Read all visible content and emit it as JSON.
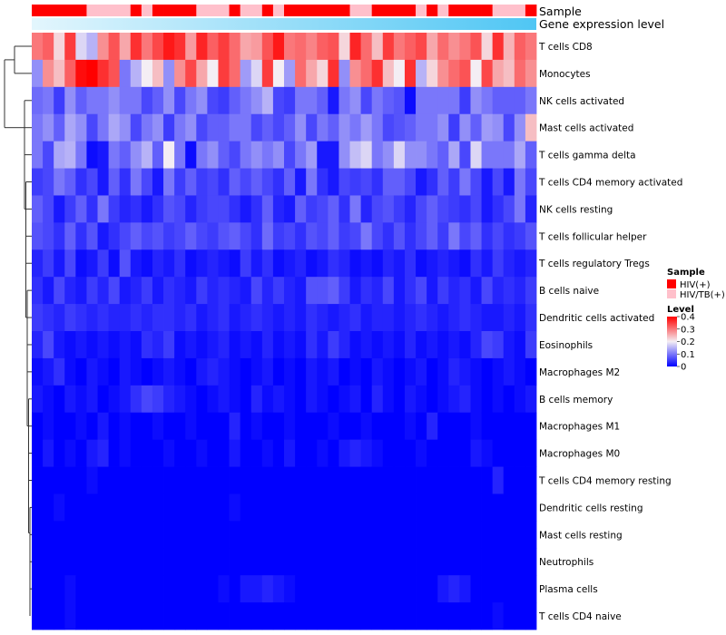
{
  "chart_data": {
    "type": "heatmap",
    "colors": {
      "low": "#0000ff",
      "mid": "#f4eef4",
      "high": "#ff0000",
      "hiv": "#ff0000",
      "hivtb": "#ffc0cb",
      "gene_bar_start": "#e3f6fd",
      "gene_bar_end": "#4fc6f4",
      "dendro": "#333333"
    },
    "annotation_labels": {
      "sample": "Sample",
      "gene": "Gene expression level"
    },
    "row_labels": [
      "T cells CD8",
      "Monocytes",
      "NK cells activated",
      "Mast cells activated",
      "T cells gamma delta",
      "T cells CD4 memory activated",
      "NK cells resting",
      "T cells follicular helper",
      "T cells regulatory  Tregs",
      "B cells naive",
      "Dendritic cells activated",
      "Eosinophils",
      "Macrophages M2",
      "B cells memory",
      "Macrophages M1",
      "Macrophages M0",
      "T cells CD4 memory resting",
      "Dendritic cells resting",
      "Mast cells resting",
      "Neutrophils",
      "Plasma cells",
      "T cells CD4 naive"
    ],
    "sample_groups": [
      "HIV(+)",
      "HIV(+)",
      "HIV(+)",
      "HIV(+)",
      "HIV(+)",
      "HIV/TB(+)",
      "HIV/TB(+)",
      "HIV/TB(+)",
      "HIV/TB(+)",
      "HIV(+)",
      "HIV/TB(+)",
      "HIV(+)",
      "HIV(+)",
      "HIV(+)",
      "HIV(+)",
      "HIV/TB(+)",
      "HIV/TB(+)",
      "HIV/TB(+)",
      "HIV(+)",
      "HIV/TB(+)",
      "HIV/TB(+)",
      "HIV(+)",
      "HIV/TB(+)",
      "HIV(+)",
      "HIV(+)",
      "HIV(+)",
      "HIV(+)",
      "HIV(+)",
      "HIV(+)",
      "HIV/TB(+)",
      "HIV/TB(+)",
      "HIV(+)",
      "HIV(+)",
      "HIV(+)",
      "HIV(+)",
      "HIV/TB(+)",
      "HIV(+)",
      "HIV/TB(+)",
      "HIV(+)",
      "HIV(+)",
      "HIV(+)",
      "HIV(+)",
      "HIV/TB(+)",
      "HIV/TB(+)",
      "HIV/TB(+)",
      "HIV(+)"
    ],
    "values": [
      [
        0.3,
        0.32,
        0.22,
        0.35,
        0.18,
        0.15,
        0.28,
        0.33,
        0.26,
        0.36,
        0.3,
        0.34,
        0.38,
        0.36,
        0.27,
        0.37,
        0.32,
        0.35,
        0.31,
        0.26,
        0.27,
        0.33,
        0.38,
        0.3,
        0.31,
        0.29,
        0.32,
        0.33,
        0.22,
        0.37,
        0.31,
        0.24,
        0.35,
        0.3,
        0.32,
        0.34,
        0.26,
        0.31,
        0.28,
        0.3,
        0.33,
        0.22,
        0.36,
        0.25,
        0.32,
        0.3
      ],
      [
        0.12,
        0.28,
        0.24,
        0.32,
        0.39,
        0.4,
        0.36,
        0.33,
        0.1,
        0.15,
        0.2,
        0.24,
        0.12,
        0.28,
        0.34,
        0.26,
        0.2,
        0.35,
        0.31,
        0.13,
        0.18,
        0.35,
        0.2,
        0.13,
        0.31,
        0.26,
        0.22,
        0.36,
        0.12,
        0.28,
        0.31,
        0.36,
        0.24,
        0.2,
        0.36,
        0.15,
        0.22,
        0.28,
        0.31,
        0.33,
        0.2,
        0.34,
        0.26,
        0.24,
        0.31,
        0.28
      ],
      [
        0.09,
        0.1,
        0.05,
        0.12,
        0.08,
        0.1,
        0.1,
        0.12,
        0.1,
        0.1,
        0.06,
        0.08,
        0.12,
        0.06,
        0.1,
        0.12,
        0.06,
        0.05,
        0.08,
        0.1,
        0.12,
        0.15,
        0.06,
        0.05,
        0.1,
        0.1,
        0.08,
        0.02,
        0.1,
        0.12,
        0.06,
        0.1,
        0.08,
        0.07,
        0.01,
        0.1,
        0.1,
        0.1,
        0.1,
        0.05,
        0.12,
        0.1,
        0.08,
        0.08,
        0.08,
        0.1
      ],
      [
        0.1,
        0.12,
        0.08,
        0.14,
        0.12,
        0.06,
        0.1,
        0.14,
        0.12,
        0.06,
        0.1,
        0.12,
        0.05,
        0.1,
        0.12,
        0.06,
        0.08,
        0.08,
        0.1,
        0.1,
        0.06,
        0.08,
        0.06,
        0.08,
        0.12,
        0.06,
        0.1,
        0.08,
        0.12,
        0.1,
        0.13,
        0.1,
        0.06,
        0.07,
        0.08,
        0.1,
        0.1,
        0.12,
        0.05,
        0.12,
        0.08,
        0.13,
        0.12,
        0.06,
        0.12,
        0.24
      ],
      [
        0.1,
        0.06,
        0.14,
        0.15,
        0.1,
        0.01,
        0.02,
        0.1,
        0.08,
        0.12,
        0.15,
        0.08,
        0.2,
        0.1,
        0.01,
        0.1,
        0.12,
        0.08,
        0.06,
        0.1,
        0.12,
        0.1,
        0.12,
        0.06,
        0.1,
        0.13,
        0.02,
        0.02,
        0.12,
        0.16,
        0.18,
        0.1,
        0.12,
        0.18,
        0.12,
        0.12,
        0.1,
        0.08,
        0.14,
        0.06,
        0.18,
        0.1,
        0.1,
        0.1,
        0.14,
        0.08
      ],
      [
        0.05,
        0.06,
        0.1,
        0.08,
        0.04,
        0.06,
        0.02,
        0.08,
        0.04,
        0.1,
        0.06,
        0.02,
        0.1,
        0.05,
        0.08,
        0.05,
        0.06,
        0.04,
        0.08,
        0.06,
        0.08,
        0.06,
        0.04,
        0.08,
        0.02,
        0.1,
        0.04,
        0.02,
        0.06,
        0.05,
        0.06,
        0.04,
        0.08,
        0.08,
        0.06,
        0.02,
        0.04,
        0.08,
        0.05,
        0.1,
        0.06,
        0.02,
        0.06,
        0.02,
        0.1,
        0.06
      ],
      [
        0.08,
        0.06,
        0.02,
        0.05,
        0.08,
        0.04,
        0.1,
        0.05,
        0.03,
        0.04,
        0.02,
        0.04,
        0.07,
        0.06,
        0.03,
        0.05,
        0.06,
        0.06,
        0.04,
        0.02,
        0.04,
        0.08,
        0.03,
        0.02,
        0.08,
        0.05,
        0.06,
        0.08,
        0.04,
        0.1,
        0.03,
        0.06,
        0.07,
        0.05,
        0.03,
        0.06,
        0.08,
        0.06,
        0.05,
        0.04,
        0.06,
        0.02,
        0.04,
        0.06,
        0.1,
        0.03
      ],
      [
        0.07,
        0.06,
        0.04,
        0.08,
        0.04,
        0.07,
        0.02,
        0.04,
        0.06,
        0.08,
        0.06,
        0.07,
        0.05,
        0.06,
        0.08,
        0.06,
        0.05,
        0.07,
        0.08,
        0.06,
        0.04,
        0.09,
        0.05,
        0.06,
        0.04,
        0.07,
        0.06,
        0.08,
        0.05,
        0.06,
        0.1,
        0.06,
        0.04,
        0.07,
        0.04,
        0.06,
        0.08,
        0.05,
        0.1,
        0.06,
        0.08,
        0.04,
        0.06,
        0.04,
        0.05,
        0.07
      ],
      [
        0.03,
        0.05,
        0.02,
        0.06,
        0.01,
        0.02,
        0.05,
        0.01,
        0.07,
        0.02,
        0.01,
        0.03,
        0.02,
        0.04,
        0.01,
        0.02,
        0.03,
        0.02,
        0.01,
        0.05,
        0.02,
        0.04,
        0.01,
        0.02,
        0.03,
        0.01,
        0.02,
        0.04,
        0.03,
        0.01,
        0.02,
        0.01,
        0.03,
        0.02,
        0.04,
        0.01,
        0.02,
        0.03,
        0.02,
        0.01,
        0.04,
        0.02,
        0.05,
        0.03,
        0.02,
        0.03
      ],
      [
        0.04,
        0.02,
        0.06,
        0.03,
        0.02,
        0.05,
        0.03,
        0.06,
        0.02,
        0.03,
        0.05,
        0.02,
        0.04,
        0.03,
        0.02,
        0.05,
        0.03,
        0.04,
        0.03,
        0.02,
        0.06,
        0.03,
        0.05,
        0.03,
        0.02,
        0.07,
        0.07,
        0.08,
        0.05,
        0.02,
        0.04,
        0.03,
        0.06,
        0.02,
        0.04,
        0.06,
        0.02,
        0.05,
        0.03,
        0.04,
        0.02,
        0.06,
        0.03,
        0.04,
        0.03,
        0.05
      ],
      [
        0.05,
        0.04,
        0.03,
        0.05,
        0.04,
        0.03,
        0.04,
        0.03,
        0.03,
        0.04,
        0.03,
        0.04,
        0.04,
        0.03,
        0.04,
        0.02,
        0.03,
        0.04,
        0.02,
        0.03,
        0.04,
        0.03,
        0.02,
        0.03,
        0.02,
        0.04,
        0.03,
        0.02,
        0.03,
        0.04,
        0.02,
        0.03,
        0.03,
        0.02,
        0.03,
        0.04,
        0.03,
        0.02,
        0.03,
        0.04,
        0.03,
        0.02,
        0.02,
        0.03,
        0.02,
        0.04
      ],
      [
        0.03,
        0.06,
        0.02,
        0.01,
        0.02,
        0.01,
        0.02,
        0.01,
        0.02,
        0.01,
        0.04,
        0.03,
        0.05,
        0.01,
        0.02,
        0.01,
        0.02,
        0.03,
        0.01,
        0.02,
        0.01,
        0.03,
        0.01,
        0.02,
        0.01,
        0.04,
        0.02,
        0.05,
        0.03,
        0.01,
        0.02,
        0.01,
        0.02,
        0.01,
        0.03,
        0.01,
        0.02,
        0.01,
        0.02,
        0.01,
        0.03,
        0.06,
        0.05,
        0.02,
        0.01,
        0.05
      ],
      [
        0.01,
        0.02,
        0.04,
        0.01,
        0.0,
        0.02,
        0.01,
        0.0,
        0.02,
        0.01,
        0.0,
        0.01,
        0.02,
        0.01,
        0.0,
        0.02,
        0.03,
        0.02,
        0.01,
        0.0,
        0.01,
        0.02,
        0.0,
        0.01,
        0.0,
        0.02,
        0.01,
        0.02,
        0.0,
        0.01,
        0.0,
        0.02,
        0.01,
        0.0,
        0.01,
        0.02,
        0.0,
        0.01,
        0.03,
        0.02,
        0.01,
        0.0,
        0.01,
        0.02,
        0.01,
        0.0
      ],
      [
        0.02,
        0.01,
        0.0,
        0.02,
        0.01,
        0.02,
        0.0,
        0.01,
        0.02,
        0.04,
        0.06,
        0.05,
        0.03,
        0.02,
        0.01,
        0.0,
        0.01,
        0.02,
        0.01,
        0.0,
        0.03,
        0.01,
        0.02,
        0.01,
        0.0,
        0.02,
        0.01,
        0.0,
        0.01,
        0.02,
        0.0,
        0.03,
        0.01,
        0.0,
        0.02,
        0.01,
        0.0,
        0.01,
        0.02,
        0.03,
        0.01,
        0.0,
        0.01,
        0.0,
        0.01,
        0.02
      ],
      [
        0.0,
        0.01,
        0.0,
        0.0,
        0.01,
        0.0,
        0.02,
        0.0,
        0.01,
        0.0,
        0.0,
        0.01,
        0.0,
        0.0,
        0.01,
        0.0,
        0.0,
        0.0,
        0.03,
        0.0,
        0.01,
        0.0,
        0.0,
        0.01,
        0.0,
        0.0,
        0.0,
        0.01,
        0.0,
        0.0,
        0.01,
        0.0,
        0.0,
        0.0,
        0.01,
        0.0,
        0.03,
        0.0,
        0.0,
        0.0,
        0.01,
        0.0,
        0.0,
        0.0,
        0.0,
        0.0
      ],
      [
        0.0,
        0.02,
        0.0,
        0.01,
        0.0,
        0.02,
        0.03,
        0.0,
        0.01,
        0.0,
        0.0,
        0.0,
        0.01,
        0.0,
        0.0,
        0.01,
        0.0,
        0.0,
        0.02,
        0.0,
        0.0,
        0.01,
        0.0,
        0.02,
        0.0,
        0.0,
        0.01,
        0.0,
        0.02,
        0.03,
        0.02,
        0.01,
        0.0,
        0.0,
        0.0,
        0.01,
        0.0,
        0.0,
        0.0,
        0.0,
        0.02,
        0.01,
        0.0,
        0.0,
        0.0,
        0.0
      ],
      [
        0.0,
        0.0,
        0.0,
        0.0,
        0.0,
        0.01,
        0.0,
        0.0,
        0.0,
        0.0,
        0.0,
        0.0,
        0.0,
        0.0,
        0.0,
        0.0,
        0.0,
        0.0,
        0.0,
        0.0,
        0.0,
        0.0,
        0.0,
        0.0,
        0.0,
        0.0,
        0.0,
        0.0,
        0.0,
        0.0,
        0.0,
        0.0,
        0.0,
        0.0,
        0.0,
        0.0,
        0.0,
        0.0,
        0.0,
        0.0,
        0.0,
        0.0,
        0.03,
        0.0,
        0.0,
        0.0
      ],
      [
        0.0,
        0.0,
        0.01,
        0.0,
        0.0,
        0.0,
        0.0,
        0.0,
        0.0,
        0.0,
        0.0,
        0.0,
        0.0,
        0.0,
        0.0,
        0.0,
        0.0,
        0.0,
        0.01,
        0.0,
        0.0,
        0.0,
        0.0,
        0.0,
        0.0,
        0.0,
        0.0,
        0.0,
        0.0,
        0.0,
        0.0,
        0.0,
        0.0,
        0.0,
        0.0,
        0.0,
        0.0,
        0.0,
        0.0,
        0.0,
        0.0,
        0.0,
        0.0,
        0.0,
        0.0,
        0.0
      ],
      [
        0.0,
        0.0,
        0.0,
        0.0,
        0.0,
        0.0,
        0.0,
        0.0,
        0.0,
        0.0,
        0.0,
        0.0,
        0.0,
        0.0,
        0.0,
        0.0,
        0.0,
        0.0,
        0.0,
        0.0,
        0.0,
        0.0,
        0.0,
        0.0,
        0.0,
        0.0,
        0.0,
        0.0,
        0.0,
        0.0,
        0.0,
        0.0,
        0.0,
        0.0,
        0.0,
        0.0,
        0.0,
        0.0,
        0.0,
        0.0,
        0.0,
        0.0,
        0.0,
        0.0,
        0.0,
        0.0
      ],
      [
        0.0,
        0.0,
        0.0,
        0.0,
        0.0,
        0.0,
        0.0,
        0.0,
        0.0,
        0.0,
        0.0,
        0.0,
        0.0,
        0.0,
        0.0,
        0.0,
        0.0,
        0.0,
        0.0,
        0.0,
        0.0,
        0.0,
        0.0,
        0.0,
        0.0,
        0.0,
        0.0,
        0.0,
        0.0,
        0.0,
        0.0,
        0.0,
        0.0,
        0.0,
        0.0,
        0.0,
        0.0,
        0.0,
        0.0,
        0.0,
        0.0,
        0.0,
        0.0,
        0.0,
        0.0,
        0.0
      ],
      [
        0.0,
        0.0,
        0.0,
        0.01,
        0.0,
        0.0,
        0.0,
        0.0,
        0.0,
        0.0,
        0.0,
        0.0,
        0.0,
        0.0,
        0.0,
        0.0,
        0.0,
        0.01,
        0.0,
        0.02,
        0.02,
        0.03,
        0.02,
        0.01,
        0.0,
        0.0,
        0.0,
        0.0,
        0.0,
        0.0,
        0.0,
        0.0,
        0.0,
        0.0,
        0.0,
        0.0,
        0.0,
        0.02,
        0.03,
        0.02,
        0.0,
        0.0,
        0.0,
        0.0,
        0.0,
        0.0
      ],
      [
        0.0,
        0.0,
        0.0,
        0.01,
        0.0,
        0.0,
        0.0,
        0.0,
        0.0,
        0.0,
        0.0,
        0.0,
        0.0,
        0.0,
        0.0,
        0.0,
        0.0,
        0.0,
        0.0,
        0.0,
        0.0,
        0.0,
        0.0,
        0.0,
        0.0,
        0.0,
        0.0,
        0.0,
        0.0,
        0.0,
        0.0,
        0.0,
        0.0,
        0.0,
        0.0,
        0.0,
        0.0,
        0.0,
        0.0,
        0.0,
        0.0,
        0.0,
        0.01,
        0.0,
        0.0,
        0.0
      ]
    ],
    "legend": {
      "sample_title": "Sample",
      "sample_entries": [
        "HIV(+)",
        "HIV/TB(+)"
      ],
      "level_title": "Level",
      "level_ticks": [
        0.4,
        0.3,
        0.2,
        0.1,
        0
      ],
      "level_tick_labels": [
        "0.4",
        "0.3",
        "0.2",
        "0.1",
        "0"
      ],
      "level_range": [
        0,
        0.4
      ]
    }
  }
}
